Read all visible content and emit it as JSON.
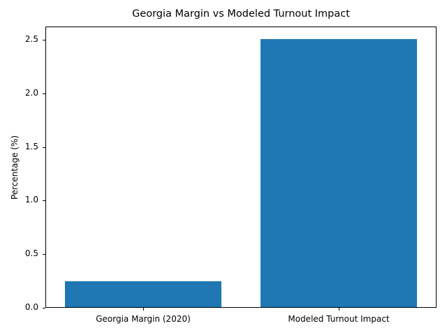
{
  "chart_data": {
    "type": "bar",
    "title": "Georgia Margin vs Modeled Turnout Impact",
    "xlabel": "",
    "ylabel": "Percentage (%)",
    "categories": [
      "Georgia Margin (2020)",
      "Modeled Turnout Impact"
    ],
    "values": [
      0.24,
      2.5
    ],
    "ylim": [
      0,
      2.625
    ],
    "yticks": [
      "0.0",
      "0.5",
      "1.0",
      "1.5",
      "2.0",
      "2.5"
    ],
    "bar_color": "#1f77b4",
    "grid": false,
    "legend": null
  }
}
